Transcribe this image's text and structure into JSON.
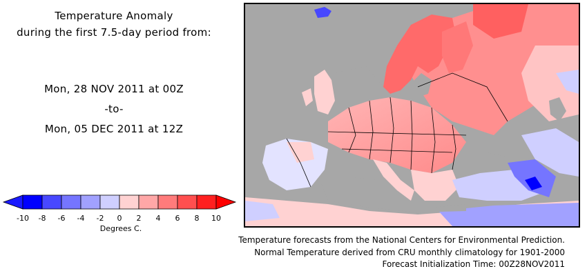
{
  "header": {
    "title_line1": "Temperature Anomaly",
    "title_line2": "during the first 7.5-day period from:",
    "start_date": "Mon, 28 NOV 2011 at 00Z",
    "separator": "-to-",
    "end_date": "Mon, 05 DEC 2011 at 12Z"
  },
  "legend": {
    "ticks": [
      "-10",
      "-8",
      "-6",
      "-4",
      "-2",
      "0",
      "2",
      "4",
      "6",
      "8",
      "10"
    ],
    "unit": "Degrees C.",
    "colors": [
      "#0000ff",
      "#4848ff",
      "#7575ff",
      "#a1a1ff",
      "#cfcfff",
      "#ffffff",
      "#ffd2d2",
      "#ffa7a7",
      "#ff7b7b",
      "#ff4f4f",
      "#ff2020"
    ],
    "low_color": "#1a1aff",
    "high_color": "#ff0000"
  },
  "map": {
    "land_color": "#a7a7a7",
    "region": "Europe"
  },
  "footer": {
    "line1": "Temperature forecasts from the National Centers for Environmental Prediction.",
    "line2": "Normal Temperature derived from CRU monthly climatology for 1901-2000",
    "line3": "Forecast Initialization Time: 00Z28NOV2011"
  }
}
